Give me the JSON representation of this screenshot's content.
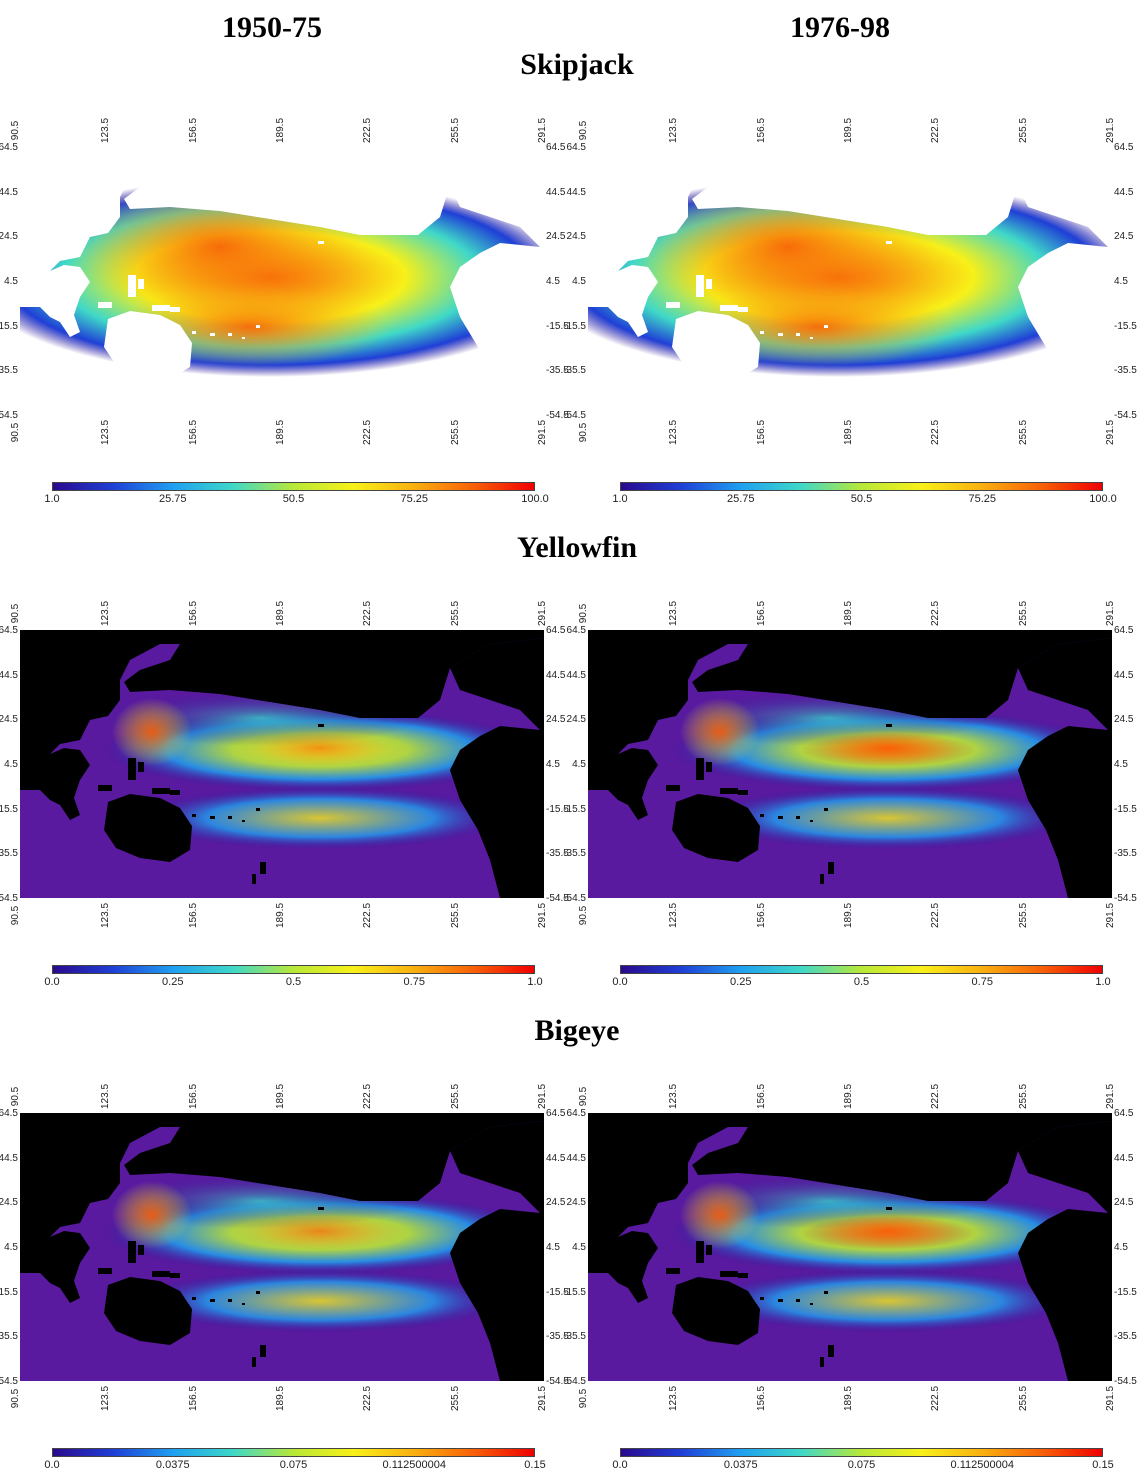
{
  "headers": {
    "left": "1950-75",
    "right": "1976-98"
  },
  "species": [
    {
      "id": "skipjack",
      "title": "Skipjack",
      "land_color": "#ffffff",
      "ocean_bg": "#ffffff",
      "colorbar_labels": [
        "1.0",
        "25.75",
        "50.5",
        "75.25",
        "100.0"
      ],
      "colorbar_range": [
        1.0,
        100.0
      ]
    },
    {
      "id": "yellowfin",
      "title": "Yellowfin",
      "land_color": "#000000",
      "ocean_bg": "#5a1aa0",
      "colorbar_labels": [
        "0.0",
        "0.25",
        "0.5",
        "0.75",
        "1.0"
      ],
      "colorbar_range": [
        0.0,
        1.0
      ]
    },
    {
      "id": "bigeye",
      "title": "Bigeye",
      "land_color": "#000000",
      "ocean_bg": "#5a1aa0",
      "colorbar_labels": [
        "0.0",
        "0.0375",
        "0.075",
        "0.112500004",
        "0.15"
      ],
      "colorbar_range": [
        0.0,
        0.15
      ]
    }
  ],
  "lon_ticks": [
    "90.5",
    "123.5",
    "156.5",
    "189.5",
    "222.5",
    "255.5",
    "291.5"
  ],
  "lat_ticks": [
    "64.5",
    "44.5",
    "24.5",
    "4.5",
    "-15.5",
    "-35.5",
    "-54.5"
  ],
  "colormap": [
    "#2a0a8c",
    "#1f3fd6",
    "#1fa0f0",
    "#3fd8c8",
    "#b8e838",
    "#f8f018",
    "#f8b010",
    "#f86008",
    "#f00000"
  ]
}
